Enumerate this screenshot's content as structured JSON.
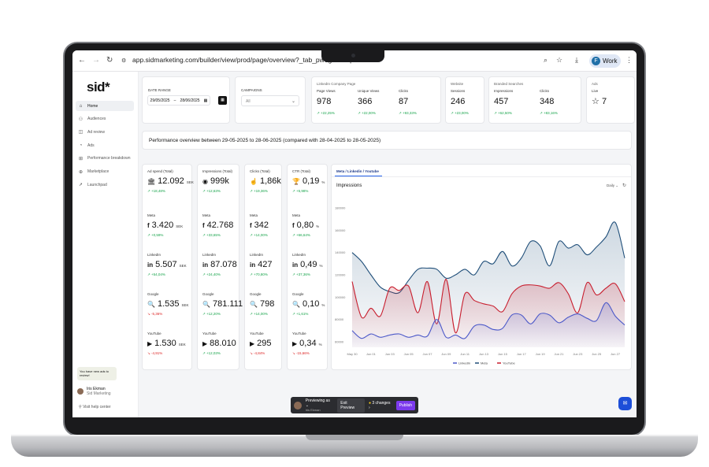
{
  "browser": {
    "url": "app.sidmarketing.com/builder/view/prod/page/overview?_tab_pw0g=xohkp",
    "profile_label": "Work",
    "profile_initial": "F"
  },
  "sidebar": {
    "logo": "sid*",
    "items": [
      {
        "label": "Home",
        "icon": "home-icon",
        "glyph": "⌂"
      },
      {
        "label": "Audiences",
        "icon": "users-icon",
        "glyph": "⚇"
      },
      {
        "label": "Ad review",
        "icon": "review-icon",
        "glyph": "◫"
      },
      {
        "label": "Ads",
        "icon": "ads-icon",
        "glyph": "◔"
      },
      {
        "label": "Performance breakdown",
        "icon": "chart-icon",
        "glyph": "⊞"
      },
      {
        "label": "Marketplace",
        "icon": "globe-icon",
        "glyph": "⊕"
      },
      {
        "label": "Launchpad",
        "icon": "rocket-icon",
        "glyph": "➚"
      }
    ],
    "toast": "You have new ads to review!",
    "user_name": "Iris Ekman",
    "user_org": "Sid Marketing",
    "help": "Visit help center"
  },
  "filters": {
    "date_range_label": "DATE RANGE",
    "date_from": "29/05/2025",
    "date_sep": "–",
    "date_to": "28/06/2025",
    "campaigns_label": "CAMPAIGNS",
    "campaigns_value": "All"
  },
  "summary": {
    "linkedin": {
      "title": "LinkedIn Company Page",
      "metrics": [
        {
          "label": "Page Views",
          "value": "978",
          "change": "+22,25%"
        },
        {
          "label": "Unique Views",
          "value": "366",
          "change": "+22,00%"
        },
        {
          "label": "Clicks",
          "value": "87",
          "change": "+93,33%"
        }
      ]
    },
    "website": {
      "title": "Website",
      "metrics": [
        {
          "label": "Sessions",
          "value": "246",
          "change": "+23,00%"
        }
      ]
    },
    "branded": {
      "title": "Branded Searches",
      "metrics": [
        {
          "label": "Impressions",
          "value": "457",
          "change": "+62,50%"
        },
        {
          "label": "Clicks",
          "value": "348",
          "change": "+83,16%"
        }
      ]
    },
    "ads": {
      "title": "Ads",
      "label": "Live",
      "value": "7"
    }
  },
  "performance": {
    "title": "Performance overview between 29-05-2025 to 28-06-2025  (compared with 28-04-2025 to 28-05-2025)"
  },
  "columns": [
    {
      "header": {
        "label": "Ad spend (Total)",
        "glyph": "🏛",
        "value": "12.092",
        "unit": "SEK",
        "change": "+18,48%",
        "dir": "pos"
      },
      "rows": [
        {
          "label": "Meta",
          "glyph": "f",
          "value": "3.420",
          "unit": "SEK",
          "change": "+0,59%",
          "dir": "pos"
        },
        {
          "label": "LinkedIn",
          "glyph": "in",
          "value": "5.507",
          "unit": "SEK",
          "change": "+54,04%",
          "dir": "pos"
        },
        {
          "label": "Google",
          "glyph": "🔍",
          "value": "1.535",
          "unit": "SEK",
          "change": "-5,36%",
          "dir": "neg"
        },
        {
          "label": "YouTube",
          "glyph": "▶",
          "value": "1.530",
          "unit": "SEK",
          "change": "-4,91%",
          "dir": "neg"
        }
      ]
    },
    {
      "header": {
        "label": "Impressions (Total)",
        "glyph": "◉",
        "value": "999k",
        "unit": "",
        "change": "+12,63%",
        "dir": "pos"
      },
      "rows": [
        {
          "label": "Meta",
          "glyph": "f",
          "value": "42.768",
          "unit": "",
          "change": "+33,65%",
          "dir": "pos"
        },
        {
          "label": "LinkedIn",
          "glyph": "in",
          "value": "87.078",
          "unit": "",
          "change": "+24,40%",
          "dir": "pos"
        },
        {
          "label": "Google",
          "glyph": "🔍",
          "value": "781.111",
          "unit": "",
          "change": "+12,20%",
          "dir": "pos"
        },
        {
          "label": "YouTube",
          "glyph": "▶",
          "value": "88.010",
          "unit": "",
          "change": "+12,03%",
          "dir": "pos"
        }
      ]
    },
    {
      "header": {
        "label": "Clicks (Total)",
        "glyph": "☝",
        "value": "1,86k",
        "unit": "",
        "change": "+19,36%",
        "dir": "pos"
      },
      "rows": [
        {
          "label": "Meta",
          "glyph": "f",
          "value": "342",
          "unit": "",
          "change": "+14,00%",
          "dir": "pos"
        },
        {
          "label": "LinkedIn",
          "glyph": "in",
          "value": "427",
          "unit": "",
          "change": "+70,80%",
          "dir": "pos"
        },
        {
          "label": "Google",
          "glyph": "🔍",
          "value": "798",
          "unit": "",
          "change": "+14,00%",
          "dir": "pos"
        },
        {
          "label": "YouTube",
          "glyph": "▶",
          "value": "295",
          "unit": "",
          "change": "-4,84%",
          "dir": "neg"
        }
      ]
    },
    {
      "header": {
        "label": "CTR (Total)",
        "glyph": "🏆",
        "value": "0,19",
        "unit": "%",
        "change": "+5,98%",
        "dir": "pos"
      },
      "rows": [
        {
          "label": "Meta",
          "glyph": "f",
          "value": "0,80",
          "unit": "%",
          "change": "+66,64%",
          "dir": "pos"
        },
        {
          "label": "LinkedIn",
          "glyph": "in",
          "value": "0,49",
          "unit": "%",
          "change": "+37,36%",
          "dir": "pos"
        },
        {
          "label": "Google",
          "glyph": "🔍",
          "value": "0,10",
          "unit": "%",
          "change": "+1,61%",
          "dir": "pos"
        },
        {
          "label": "YouTube",
          "glyph": "▶",
          "value": "0,34",
          "unit": "%",
          "change": "-15,66%",
          "dir": "neg"
        }
      ]
    }
  ],
  "chart_tab": "Meta / Linkedin / Youtube",
  "chart_data": {
    "type": "area",
    "title": "Impressions",
    "granularity": "Daily",
    "x": [
      "May 30",
      "May 31",
      "Jun 1",
      "Jun 2",
      "Jun 3",
      "Jun 4",
      "Jun 5",
      "Jun 6",
      "Jun 7",
      "Jun 8",
      "Jun 9",
      "Jun 10",
      "Jun 11",
      "Jun 12",
      "Jun 13",
      "Jun 14",
      "Jun 15",
      "Jun 16",
      "Jun 17",
      "Jun 18",
      "Jun 19",
      "Jun 20",
      "Jun 21",
      "Jun 22",
      "Jun 23",
      "Jun 24",
      "Jun 25",
      "Jun 26",
      "Jun 27",
      "Jun 28"
    ],
    "x_tick_labels": [
      "May 30",
      "Jun 01",
      "Jun 03",
      "Jun 05",
      "Jun 07",
      "Jun 09",
      "Jun 11",
      "Jun 13",
      "Jun 15",
      "Jun 17",
      "Jun 19",
      "Jun 21",
      "Jun 23",
      "Jun 25",
      "Jun 27"
    ],
    "y_tick_labels": [
      "60000",
      "80000",
      "100000",
      "120000",
      "140000",
      "160000",
      "180000"
    ],
    "ylim": [
      55000,
      185000
    ],
    "series": [
      {
        "name": "LinkedIn",
        "color": "#4c59c9",
        "values": [
          70000,
          63000,
          67000,
          64000,
          66000,
          67000,
          64000,
          66000,
          65000,
          80000,
          64000,
          66000,
          63000,
          74000,
          75000,
          71000,
          72000,
          84000,
          84000,
          76000,
          85000,
          84000,
          77000,
          82000,
          85000,
          81000,
          79000,
          95000,
          83000,
          75000
        ]
      },
      {
        "name": "Meta",
        "color": "#1f4e79",
        "values": [
          140000,
          132000,
          120000,
          109000,
          105000,
          104000,
          115000,
          125000,
          126000,
          125000,
          117000,
          120000,
          125000,
          120000,
          132000,
          130000,
          141000,
          128000,
          135000,
          150000,
          146000,
          128000,
          150000,
          144000,
          147000,
          138000,
          145000,
          154000,
          167000,
          135000
        ]
      },
      {
        "name": "YouTube",
        "color": "#c81e2e",
        "values": [
          114000,
          82000,
          90000,
          83000,
          108000,
          106000,
          110000,
          86000,
          114000,
          76000,
          116000,
          68000,
          103000,
          97000,
          94000,
          92000,
          87000,
          103000,
          110000,
          111000,
          110000,
          108000,
          113000,
          103000,
          86000,
          113000,
          102000,
          108000,
          112000,
          96000
        ]
      }
    ],
    "legend": "bottom"
  },
  "preview_bar": {
    "title": "Previewing as",
    "subtitle": "Iris Ekman",
    "exit": "Exit Preview",
    "changes": "3 changes",
    "publish": "Publish"
  }
}
